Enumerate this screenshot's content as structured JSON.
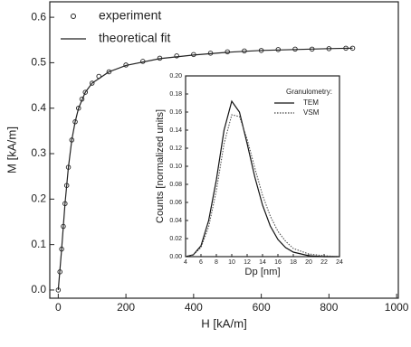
{
  "chart_data": [
    {
      "type": "line",
      "xlabel": "H [kA/m]",
      "ylabel": "M [kA/m]",
      "xlim": [
        -25,
        1005
      ],
      "ylim": [
        -0.018,
        0.634
      ],
      "xticks": [
        0,
        200,
        400,
        600,
        800,
        1000
      ],
      "yticks": [
        {
          "value": 0,
          "label": "0.0"
        },
        0.1,
        0.2,
        0.3,
        0.4,
        0.5,
        0.6
      ],
      "legend": "upper-left",
      "series": [
        {
          "name": "experiment",
          "type": "scatter",
          "color": "#222222",
          "x": [
            0,
            5,
            10,
            15,
            20,
            25,
            30,
            40,
            50,
            60,
            70,
            80,
            100,
            120,
            150,
            200,
            250,
            300,
            350,
            400,
            450,
            500,
            550,
            600,
            650,
            700,
            750,
            800,
            850,
            870
          ],
          "values": [
            0,
            0.04,
            0.09,
            0.14,
            0.19,
            0.23,
            0.27,
            0.33,
            0.37,
            0.4,
            0.42,
            0.435,
            0.455,
            0.47,
            0.48,
            0.495,
            0.503,
            0.51,
            0.515,
            0.518,
            0.521,
            0.524,
            0.526,
            0.527,
            0.529,
            0.53,
            0.53,
            0.531,
            0.532,
            0.532
          ]
        },
        {
          "name": "theoretical fit",
          "type": "line",
          "color": "#222222",
          "x": [
            0,
            10,
            20,
            30,
            40,
            50,
            60,
            80,
            100,
            150,
            200,
            300,
            400,
            500,
            600,
            700,
            800,
            870
          ],
          "values": [
            0,
            0.09,
            0.19,
            0.27,
            0.33,
            0.37,
            0.4,
            0.435,
            0.455,
            0.48,
            0.494,
            0.509,
            0.517,
            0.523,
            0.527,
            0.529,
            0.531,
            0.532
          ]
        }
      ]
    },
    {
      "type": "line",
      "xlabel": "Dp [nm]",
      "ylabel": "Counts [normalized units]",
      "xlim": [
        4,
        24
      ],
      "ylim": [
        0,
        0.2
      ],
      "xticks": [
        4,
        6,
        8,
        10,
        12,
        14,
        16,
        18,
        20,
        22,
        24
      ],
      "yticks": [
        {
          "value": 0,
          "label": "0.00"
        },
        0.02,
        0.04,
        0.06,
        0.08,
        {
          "value": 0.1,
          "label": "0.10"
        },
        0.12,
        0.14,
        0.16,
        0.18,
        {
          "value": 0.2,
          "label": "0.20"
        }
      ],
      "legend_title": "Granulometry:",
      "legend": "upper-right",
      "series": [
        {
          "name": "TEM",
          "type": "line",
          "color": "#111111",
          "x": [
            4,
            5,
            6,
            7,
            8,
            9,
            10,
            11,
            12,
            13,
            14,
            15,
            16,
            17,
            18,
            20,
            22,
            24
          ],
          "values": [
            0,
            0.002,
            0.012,
            0.04,
            0.085,
            0.14,
            0.172,
            0.16,
            0.125,
            0.088,
            0.057,
            0.034,
            0.019,
            0.01,
            0.005,
            0.001,
            0,
            0
          ]
        },
        {
          "name": "VSM",
          "type": "dotted",
          "color": "#444444",
          "x": [
            4,
            5,
            6,
            7,
            8,
            9,
            10,
            11,
            12,
            13,
            14,
            15,
            16,
            17,
            18,
            20,
            22,
            24
          ],
          "values": [
            0,
            0.002,
            0.01,
            0.033,
            0.073,
            0.125,
            0.157,
            0.155,
            0.13,
            0.098,
            0.068,
            0.045,
            0.028,
            0.017,
            0.009,
            0.003,
            0.001,
            0
          ]
        }
      ]
    }
  ]
}
